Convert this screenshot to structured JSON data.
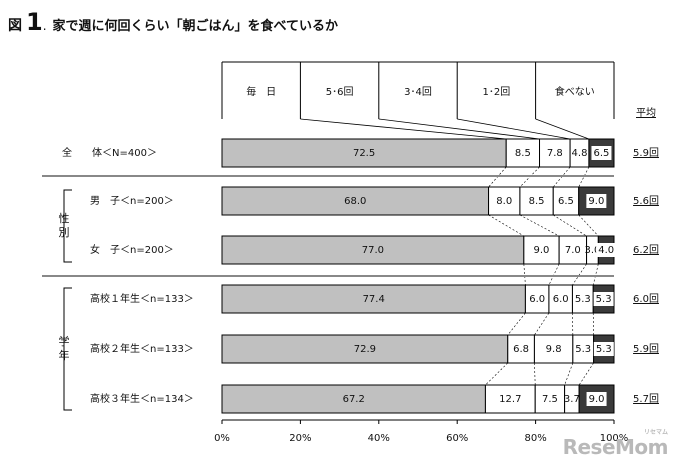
{
  "header": {
    "prefix": "図",
    "number": "1",
    "dot": ".",
    "title": "家で週に何回くらい「朝ごはん」を食べているか"
  },
  "watermark": {
    "text": "ReseMom",
    "sub": "リセマム"
  },
  "chart_data": {
    "type": "bar",
    "orientation": "horizontal",
    "stacked": true,
    "categories": [
      "全　　体＜N=400＞",
      "男　子＜n=200＞",
      "女　子＜n=200＞",
      "高校１年生＜n=133＞",
      "高校２年生＜n=133＞",
      "高校３年生＜n=134＞"
    ],
    "group_labels": [
      {
        "label": "性別",
        "rows": [
          1,
          2
        ]
      },
      {
        "label": "学年",
        "rows": [
          3,
          4,
          5
        ]
      }
    ],
    "series": [
      {
        "name": "毎　日",
        "color": "#c0c0c0",
        "values": [
          72.5,
          68.0,
          77.0,
          77.4,
          72.9,
          67.2
        ]
      },
      {
        "name": "5･6回",
        "color": "#ffffff",
        "values": [
          8.5,
          8.0,
          9.0,
          6.0,
          6.8,
          12.7
        ]
      },
      {
        "name": "3･4回",
        "color": "#ffffff",
        "values": [
          7.8,
          8.5,
          7.0,
          6.0,
          9.8,
          7.5
        ]
      },
      {
        "name": "1･2回",
        "color": "#ffffff",
        "values": [
          4.8,
          6.5,
          3.0,
          5.3,
          5.3,
          3.7
        ]
      },
      {
        "name": "食べない",
        "color": "#3a3a3a",
        "values": [
          6.5,
          9.0,
          4.0,
          5.3,
          5.3,
          9.0
        ]
      }
    ],
    "labels": [
      [
        "72.5",
        "8.5",
        "7.8",
        "4.8",
        "6.5"
      ],
      [
        "68.0",
        "8.0",
        "8.5",
        "6.5",
        "9.0"
      ],
      [
        "77.0",
        "9.0",
        "7.0",
        "3.0",
        "4.0"
      ],
      [
        "77.4",
        "6.0",
        "6.0",
        "5.3",
        "5.3"
      ],
      [
        "72.9",
        "6.8",
        "9.8",
        "5.3",
        "5.3"
      ],
      [
        "67.2",
        "12.7",
        "7.5",
        "3.7",
        "9.0"
      ]
    ],
    "average_header": "平均",
    "averages": [
      "5.9回",
      "5.6回",
      "6.2回",
      "6.0回",
      "5.9回",
      "5.7回"
    ],
    "xlim": [
      0,
      100
    ],
    "x_ticks": [
      "0%",
      "20%",
      "40%",
      "60%",
      "80%",
      "100%"
    ]
  }
}
